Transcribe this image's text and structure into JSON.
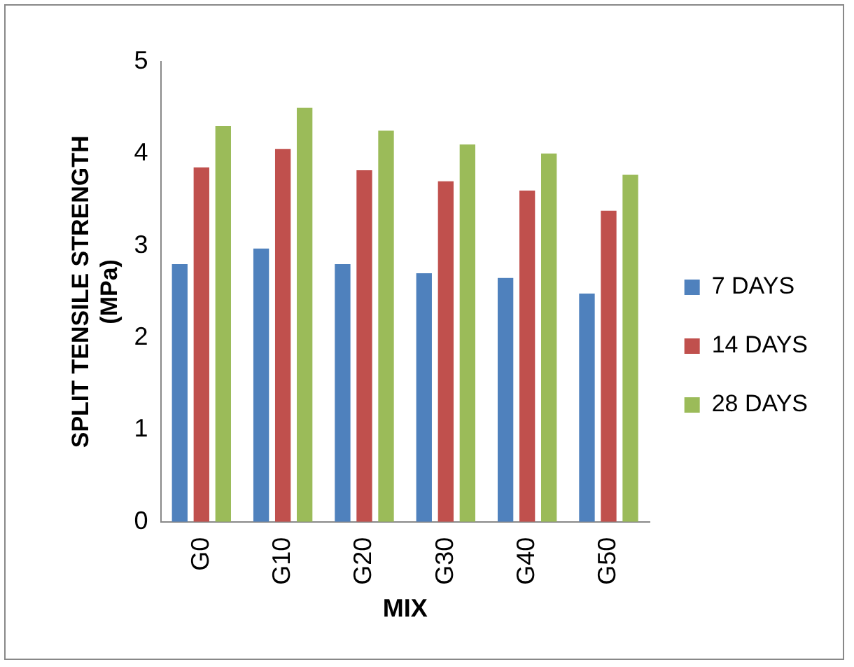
{
  "chart_data": {
    "type": "bar",
    "xlabel": "MIX",
    "ylabel": "SPLIT TENSILE STRENGTH\n(MPa)",
    "categories": [
      "G0",
      "G10",
      "G20",
      "G30",
      "G40",
      "G50"
    ],
    "series": [
      {
        "name": "7 DAYS",
        "color": "#4f81bd",
        "values": [
          2.8,
          2.97,
          2.8,
          2.7,
          2.65,
          2.48
        ]
      },
      {
        "name": "14 DAYS",
        "color": "#c0504d",
        "values": [
          3.85,
          4.05,
          3.82,
          3.7,
          3.6,
          3.38
        ]
      },
      {
        "name": "28 DAYS",
        "color": "#9bbb59",
        "values": [
          4.3,
          4.5,
          4.25,
          4.1,
          4.0,
          3.77
        ]
      }
    ],
    "ylim": [
      0,
      5
    ],
    "yticks": [
      0,
      1,
      2,
      3,
      4,
      5
    ],
    "grid": false,
    "legend": "right"
  }
}
